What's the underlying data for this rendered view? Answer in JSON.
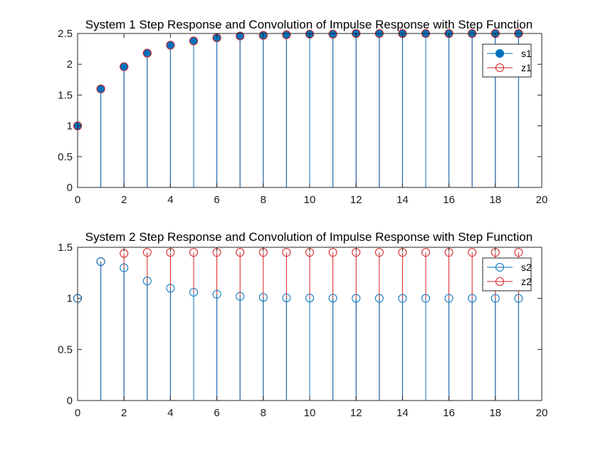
{
  "figure": {
    "background": "#ffffff"
  },
  "colors": {
    "blue": "#0072BD",
    "red": "#D62020",
    "axis": "#262626"
  },
  "chart_data": [
    {
      "type": "stem",
      "title": "System 1 Step Response and Convolution of Impulse Response with Step Function",
      "xlim": [
        0,
        20
      ],
      "ylim": [
        0,
        2.5
      ],
      "xticks": [
        0,
        2,
        4,
        6,
        8,
        10,
        12,
        14,
        16,
        18,
        20
      ],
      "xtick_labels": [
        "0",
        "2",
        "4",
        "6",
        "8",
        "10",
        "12",
        "14",
        "16",
        "18",
        "20"
      ],
      "yticks": [
        0,
        0.5,
        1,
        1.5,
        2,
        2.5
      ],
      "ytick_labels": [
        "0",
        "0.5",
        "1",
        "1.5",
        "2",
        "2.5"
      ],
      "grid": false,
      "legend_position": "top-right",
      "x": [
        0,
        1,
        2,
        3,
        4,
        5,
        6,
        7,
        8,
        9,
        10,
        11,
        12,
        13,
        14,
        15,
        16,
        17,
        18,
        19
      ],
      "series": [
        {
          "name": "s1",
          "color": "#0072BD",
          "marker": "filled-circle",
          "values": [
            1.0,
            1.6,
            1.96,
            2.18,
            2.31,
            2.38,
            2.43,
            2.46,
            2.47,
            2.48,
            2.49,
            2.49,
            2.5,
            2.5,
            2.5,
            2.5,
            2.5,
            2.5,
            2.5,
            2.5
          ]
        },
        {
          "name": "z1",
          "color": "#D62020",
          "marker": "open-circle",
          "values": [
            1.0,
            1.6,
            1.96,
            2.18,
            2.31,
            2.38,
            2.43,
            2.46,
            2.47,
            2.48,
            2.49,
            2.49,
            2.5,
            2.5,
            2.5,
            2.5,
            2.5,
            2.5,
            2.5,
            2.5
          ]
        }
      ]
    },
    {
      "type": "stem",
      "title": "System 2 Step Response and Convolution of Impulse Response with Step Function",
      "xlim": [
        0,
        20
      ],
      "ylim": [
        0,
        1.5
      ],
      "xticks": [
        0,
        2,
        4,
        6,
        8,
        10,
        12,
        14,
        16,
        18,
        20
      ],
      "xtick_labels": [
        "0",
        "2",
        "4",
        "6",
        "8",
        "10",
        "12",
        "14",
        "16",
        "18",
        "20"
      ],
      "yticks": [
        0,
        0.5,
        1,
        1.5
      ],
      "ytick_labels": [
        "0",
        "0.5",
        "1",
        "1.5"
      ],
      "grid": false,
      "legend_position": "top-right",
      "x": [
        0,
        1,
        2,
        3,
        4,
        5,
        6,
        7,
        8,
        9,
        10,
        11,
        12,
        13,
        14,
        15,
        16,
        17,
        18,
        19
      ],
      "series": [
        {
          "name": "s2",
          "color": "#0072BD",
          "marker": "open-circle",
          "values": [
            1.0,
            1.36,
            1.3,
            1.17,
            1.1,
            1.06,
            1.04,
            1.02,
            1.01,
            1.005,
            1.003,
            1.002,
            1.001,
            1.0,
            1.0,
            1.0,
            1.0,
            1.0,
            1.0,
            1.0
          ]
        },
        {
          "name": "z2",
          "color": "#D62020",
          "marker": "open-circle",
          "values": [
            1.0,
            1.36,
            1.44,
            1.45,
            1.45,
            1.45,
            1.45,
            1.45,
            1.45,
            1.45,
            1.45,
            1.45,
            1.45,
            1.45,
            1.45,
            1.45,
            1.45,
            1.45,
            1.45,
            1.45
          ]
        }
      ]
    }
  ]
}
